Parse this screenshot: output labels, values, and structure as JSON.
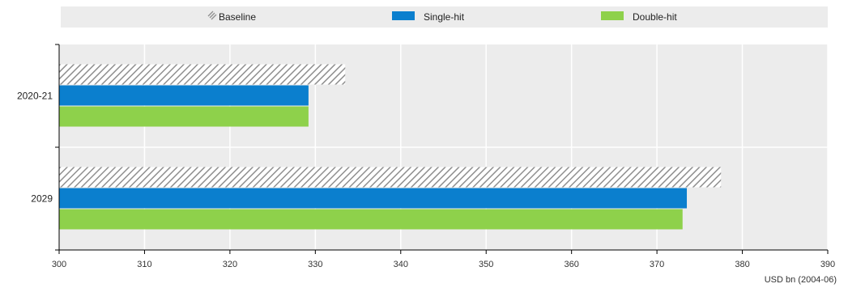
{
  "chart_data": {
    "type": "bar",
    "orientation": "horizontal",
    "categories": [
      "2020-21",
      "2029"
    ],
    "series": [
      {
        "name": "Baseline",
        "values": [
          333.5,
          377.5
        ],
        "color": "#9a9a9a",
        "pattern": "diagonal-hatch"
      },
      {
        "name": "Single-hit",
        "values": [
          329.2,
          373.5
        ],
        "color": "#0b7fce"
      },
      {
        "name": "Double-hit",
        "values": [
          329.2,
          373.0
        ],
        "color": "#8ed14b"
      }
    ],
    "xlim": [
      300,
      390
    ],
    "xticks": [
      "300",
      "310",
      "320",
      "330",
      "340",
      "350",
      "360",
      "370",
      "380",
      "390"
    ],
    "xlabel": "USD bn (2004-06)",
    "legend": {
      "position": "top",
      "background": "#ececec"
    },
    "grid": {
      "vertical": true,
      "color": "#ffffff"
    },
    "plot_background": "#ececec"
  }
}
